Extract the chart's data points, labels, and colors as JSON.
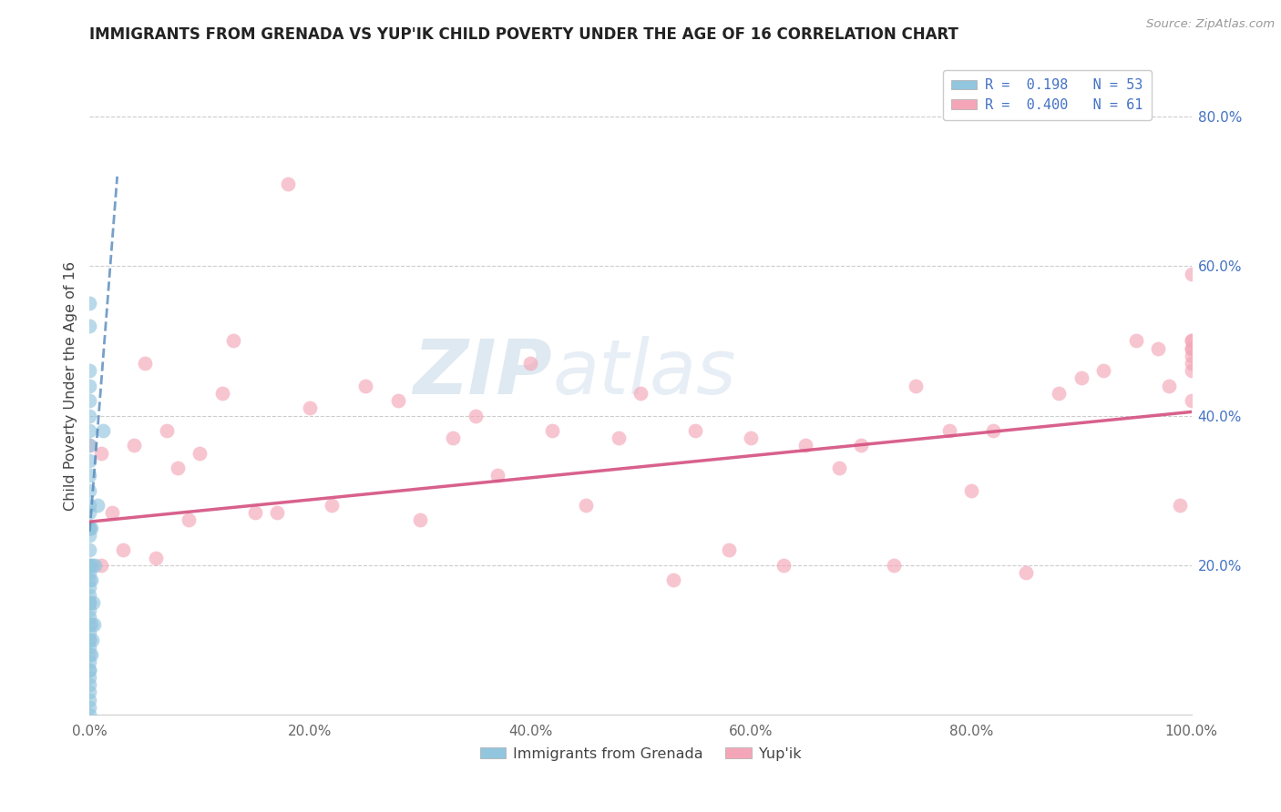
{
  "title": "IMMIGRANTS FROM GRENADA VS YUP'IK CHILD POVERTY UNDER THE AGE OF 16 CORRELATION CHART",
  "source": "Source: ZipAtlas.com",
  "ylabel": "Child Poverty Under the Age of 16",
  "xlim": [
    0.0,
    1.0
  ],
  "ylim": [
    0.0,
    0.88
  ],
  "x_tick_labels": [
    "0.0%",
    "20.0%",
    "40.0%",
    "60.0%",
    "80.0%",
    "100.0%"
  ],
  "x_tick_vals": [
    0.0,
    0.2,
    0.4,
    0.6,
    0.8,
    1.0
  ],
  "y_tick_labels": [
    "20.0%",
    "40.0%",
    "60.0%",
    "80.0%"
  ],
  "y_tick_vals": [
    0.2,
    0.4,
    0.6,
    0.8
  ],
  "legend_label1": "R =  0.198   N = 53",
  "legend_label2": "R =  0.400   N = 61",
  "legend_label_bottom1": "Immigrants from Grenada",
  "legend_label_bottom2": "Yup'ik",
  "color_blue": "#92c5de",
  "color_pink": "#f4a6b8",
  "color_line_blue": "#5588bb",
  "color_line_pink": "#d45080",
  "watermark_zip": "ZIP",
  "watermark_atlas": "atlas",
  "grenada_x": [
    0.0,
    0.0,
    0.0,
    0.0,
    0.0,
    0.0,
    0.0,
    0.0,
    0.0,
    0.0,
    0.0,
    0.0,
    0.0,
    0.0,
    0.0,
    0.0,
    0.0,
    0.0,
    0.0,
    0.0,
    0.0,
    0.0,
    0.0,
    0.0,
    0.0,
    0.0,
    0.0,
    0.0,
    0.0,
    0.0,
    0.0,
    0.0,
    0.0,
    0.0,
    0.0,
    0.0,
    0.0,
    0.0,
    0.0,
    0.0,
    0.0,
    0.0,
    0.001,
    0.001,
    0.001,
    0.001,
    0.002,
    0.002,
    0.003,
    0.004,
    0.005,
    0.007,
    0.012
  ],
  "grenada_y": [
    0.0,
    0.01,
    0.02,
    0.03,
    0.04,
    0.05,
    0.06,
    0.07,
    0.08,
    0.09,
    0.1,
    0.11,
    0.12,
    0.13,
    0.14,
    0.15,
    0.16,
    0.17,
    0.18,
    0.19,
    0.2,
    0.22,
    0.24,
    0.25,
    0.27,
    0.28,
    0.3,
    0.32,
    0.34,
    0.36,
    0.38,
    0.4,
    0.42,
    0.44,
    0.46,
    0.52,
    0.55,
    0.06,
    0.1,
    0.15,
    0.2,
    0.25,
    0.08,
    0.12,
    0.18,
    0.25,
    0.1,
    0.2,
    0.15,
    0.12,
    0.2,
    0.28,
    0.38
  ],
  "yupik_x": [
    0.0,
    0.0,
    0.01,
    0.01,
    0.02,
    0.03,
    0.04,
    0.05,
    0.06,
    0.07,
    0.08,
    0.09,
    0.1,
    0.12,
    0.13,
    0.15,
    0.17,
    0.18,
    0.2,
    0.22,
    0.25,
    0.28,
    0.3,
    0.33,
    0.35,
    0.37,
    0.4,
    0.42,
    0.45,
    0.48,
    0.5,
    0.53,
    0.55,
    0.58,
    0.6,
    0.63,
    0.65,
    0.68,
    0.7,
    0.73,
    0.75,
    0.78,
    0.8,
    0.82,
    0.85,
    0.88,
    0.9,
    0.92,
    0.95,
    0.97,
    0.98,
    0.99,
    1.0,
    1.0,
    1.0,
    1.0,
    1.0,
    1.0,
    1.0,
    1.0,
    1.0
  ],
  "yupik_y": [
    0.25,
    0.36,
    0.2,
    0.35,
    0.27,
    0.22,
    0.36,
    0.47,
    0.21,
    0.38,
    0.33,
    0.26,
    0.35,
    0.43,
    0.5,
    0.27,
    0.27,
    0.71,
    0.41,
    0.28,
    0.44,
    0.42,
    0.26,
    0.37,
    0.4,
    0.32,
    0.47,
    0.38,
    0.28,
    0.37,
    0.43,
    0.18,
    0.38,
    0.22,
    0.37,
    0.2,
    0.36,
    0.33,
    0.36,
    0.2,
    0.44,
    0.38,
    0.3,
    0.38,
    0.19,
    0.43,
    0.45,
    0.46,
    0.5,
    0.49,
    0.44,
    0.28,
    0.42,
    0.49,
    0.5,
    0.59,
    0.48,
    0.49,
    0.47,
    0.5,
    0.46
  ],
  "grenada_line_x0": 0.0,
  "grenada_line_x1": 0.025,
  "grenada_line_y0": 0.245,
  "grenada_line_y1": 0.72,
  "yupik_line_x0": 0.0,
  "yupik_line_x1": 1.0,
  "yupik_line_y0": 0.258,
  "yupik_line_y1": 0.405
}
